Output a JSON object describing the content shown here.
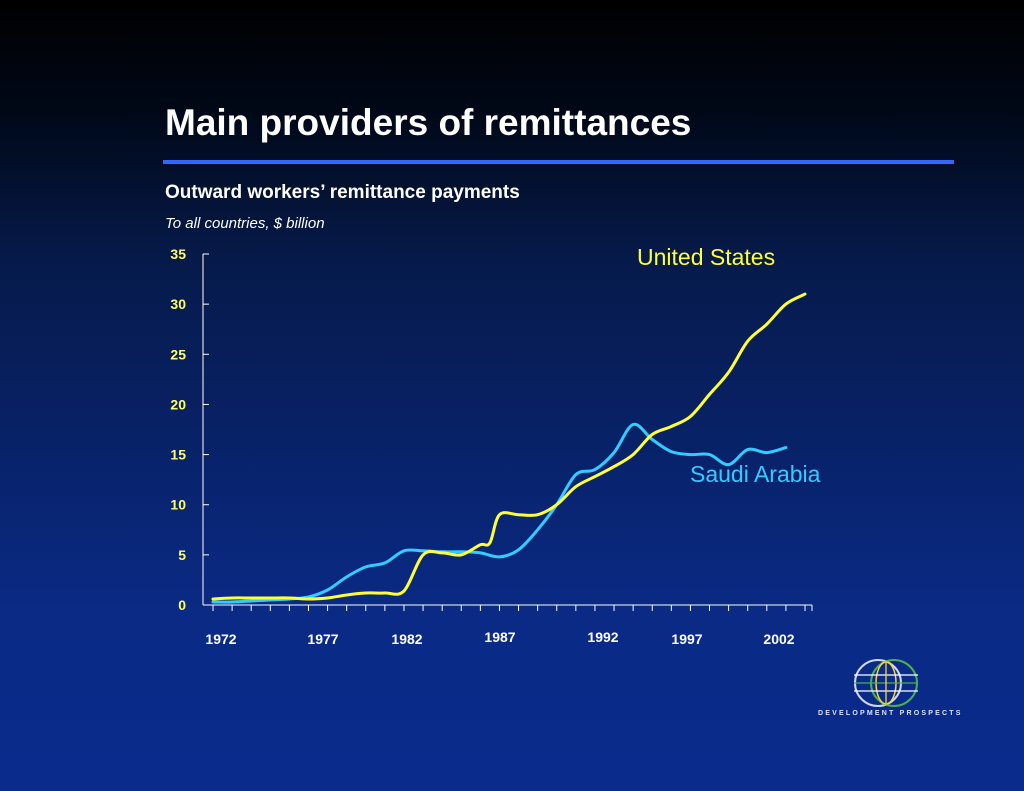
{
  "slide": {
    "title": "Main providers of remittances",
    "subtitle": "Outward workers’ remittance payments",
    "units": "To all countries, $ billion"
  },
  "logo": {
    "icon": "globe-logo-icon",
    "text": "DEVELOPMENT PROSPECTS"
  },
  "colors": {
    "background_top": "#000000",
    "background_bottom": "#0a2b8c",
    "title_rule": "#3366ff",
    "axis": "#ffffff",
    "y_tick_labels": "#ffff66",
    "x_tick_labels": "#ffffff"
  },
  "chart_data": {
    "type": "line",
    "title": "",
    "xlabel": "",
    "ylabel": "",
    "ylim": [
      0,
      35
    ],
    "yticks": [
      0,
      5,
      10,
      15,
      20,
      25,
      30,
      35
    ],
    "xlim": [
      1972,
      2003
    ],
    "xtick_labels": [
      "1972",
      "1977",
      "1982",
      "1987",
      "1992",
      "1997",
      "2002"
    ],
    "grid": false,
    "legend": "inline labels",
    "series": [
      {
        "name": "United States",
        "color": "#ffff33",
        "points": [
          [
            1972,
            0.6
          ],
          [
            1973,
            0.7
          ],
          [
            1974,
            0.7
          ],
          [
            1975,
            0.7
          ],
          [
            1976,
            0.7
          ],
          [
            1977,
            0.6
          ],
          [
            1978,
            0.7
          ],
          [
            1979,
            1.0
          ],
          [
            1980,
            1.2
          ],
          [
            1981,
            1.2
          ],
          [
            1982,
            1.4
          ],
          [
            1983,
            5.0
          ],
          [
            1984,
            5.2
          ],
          [
            1985,
            5.0
          ],
          [
            1986,
            6.0
          ],
          [
            1986.5,
            6.2
          ],
          [
            1987,
            9.0
          ],
          [
            1988,
            9.0
          ],
          [
            1989,
            9.0
          ],
          [
            1990,
            10.0
          ],
          [
            1991,
            11.8
          ],
          [
            1992,
            12.8
          ],
          [
            1993,
            13.8
          ],
          [
            1994,
            15.0
          ],
          [
            1995,
            17.0
          ],
          [
            1996,
            17.8
          ],
          [
            1997,
            18.8
          ],
          [
            1998,
            21.0
          ],
          [
            1999,
            23.2
          ],
          [
            2000,
            26.3
          ],
          [
            2001,
            28.0
          ],
          [
            2002,
            30.0
          ],
          [
            2003,
            31.0
          ]
        ],
        "label": "United States"
      },
      {
        "name": "Saudi Arabia",
        "color": "#33ccff",
        "points": [
          [
            1972,
            0.3
          ],
          [
            1973,
            0.3
          ],
          [
            1974,
            0.4
          ],
          [
            1975,
            0.5
          ],
          [
            1976,
            0.6
          ],
          [
            1977,
            0.8
          ],
          [
            1978,
            1.5
          ],
          [
            1979,
            2.8
          ],
          [
            1980,
            3.8
          ],
          [
            1981,
            4.2
          ],
          [
            1982,
            5.4
          ],
          [
            1983,
            5.4
          ],
          [
            1984,
            5.3
          ],
          [
            1985,
            5.3
          ],
          [
            1986,
            5.2
          ],
          [
            1987,
            4.8
          ],
          [
            1988,
            5.5
          ],
          [
            1989,
            7.5
          ],
          [
            1990,
            10.0
          ],
          [
            1991,
            13.0
          ],
          [
            1992,
            13.5
          ],
          [
            1993,
            15.2
          ],
          [
            1994,
            18.0
          ],
          [
            1995,
            16.5
          ],
          [
            1996,
            15.3
          ],
          [
            1997,
            15.0
          ],
          [
            1998,
            15.0
          ],
          [
            1999,
            14.0
          ],
          [
            2000,
            15.5
          ],
          [
            2001,
            15.2
          ],
          [
            2002,
            15.7
          ]
        ],
        "label": "Saudi Arabia"
      }
    ]
  }
}
